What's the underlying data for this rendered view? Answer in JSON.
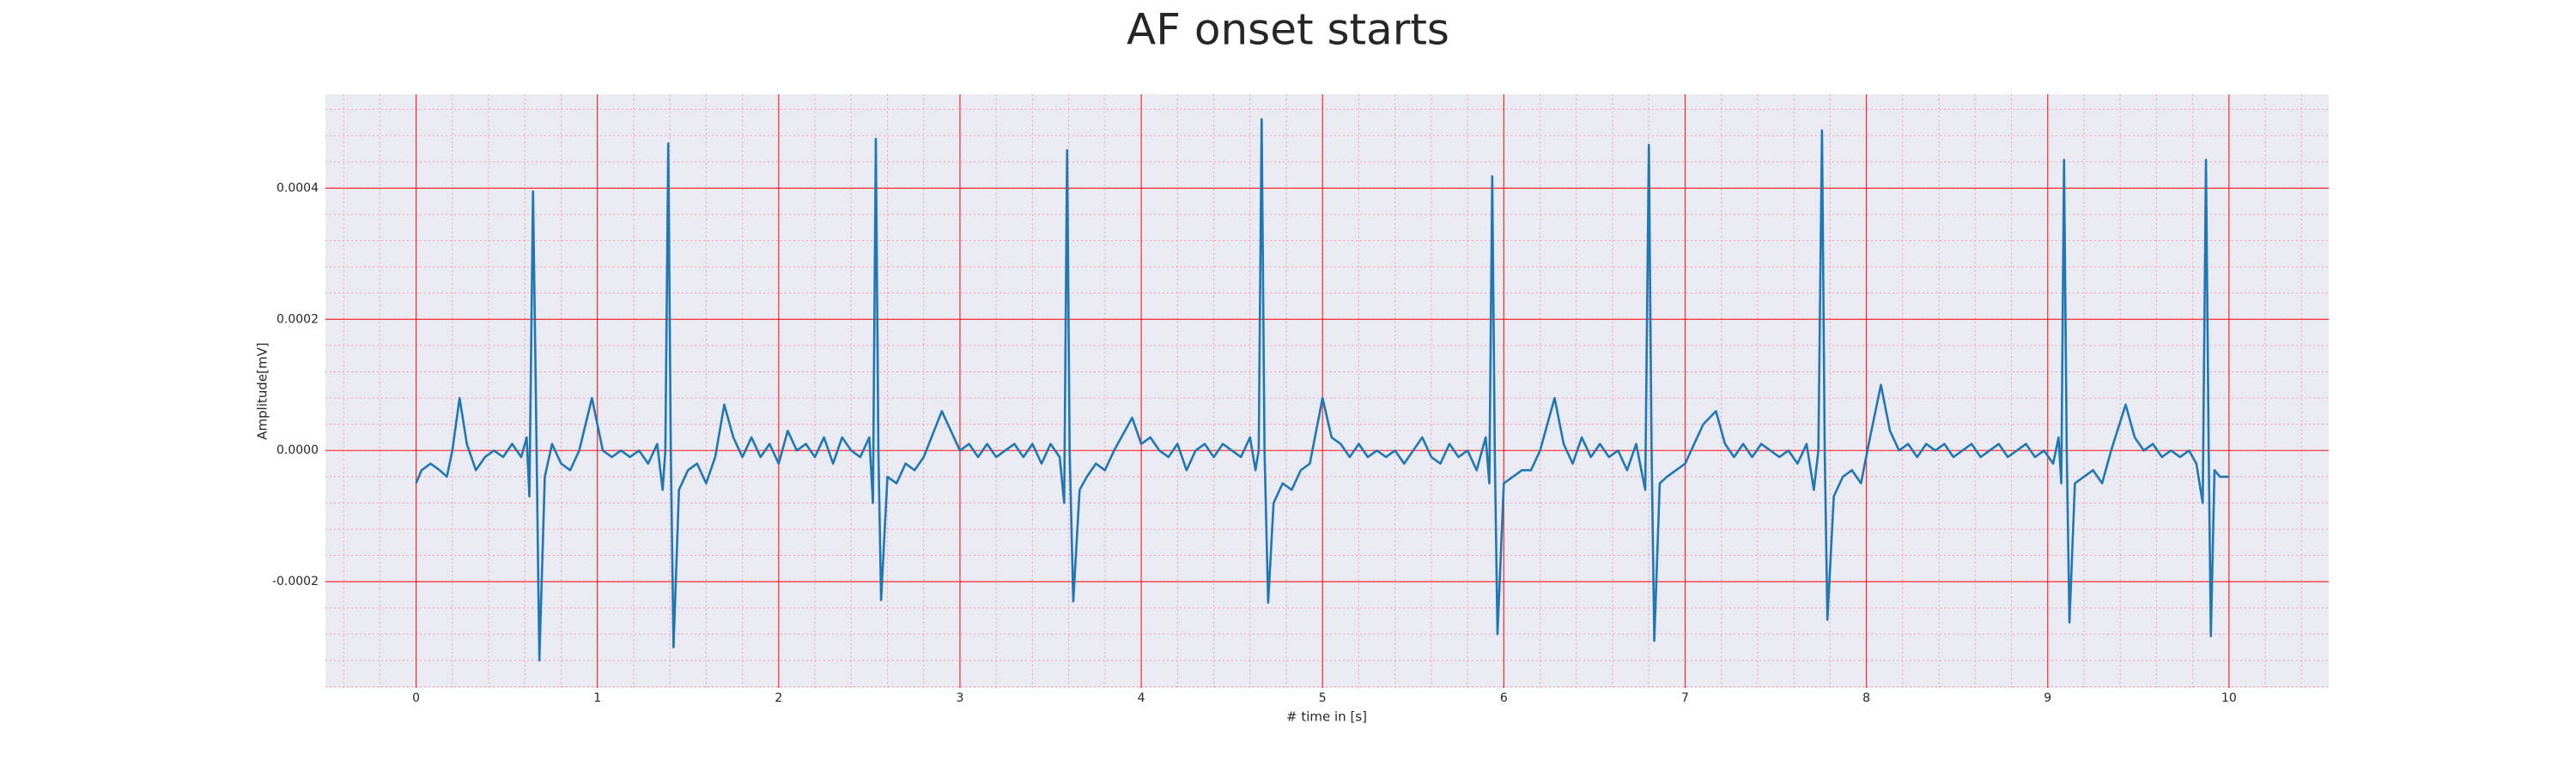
{
  "chart_data": {
    "type": "line",
    "title": "AF onset starts",
    "x_label": "# time in [s]",
    "y_label": "Amplitude[mV]",
    "color": "#1f77b4",
    "xlim": [
      -0.5,
      10.55
    ],
    "ylim": [
      -0.000362,
      0.000543
    ],
    "xticks": [
      0,
      1,
      2,
      3,
      4,
      5,
      6,
      7,
      8,
      9,
      10
    ],
    "yticks": [
      -0.0002,
      {
        "value": 0,
        "label": "0.0000"
      },
      0.0002,
      0.0004
    ],
    "grid": true,
    "grid_color": "#ff0000",
    "minor_grid": {
      "x_step": 0.2,
      "y_step": 4e-05,
      "color": "#f4a0b0"
    },
    "background": "#eaeaf2",
    "x": [
      0,
      0.03,
      0.08,
      0.13,
      0.17,
      0.2,
      0.24,
      0.28,
      0.33,
      0.38,
      0.43,
      0.48,
      0.53,
      0.58,
      0.61,
      0.625,
      0.645,
      0.66,
      0.68,
      0.71,
      0.75,
      0.8,
      0.85,
      0.9,
      0.97,
      1.03,
      1.08,
      1.13,
      1.18,
      1.23,
      1.28,
      1.33,
      1.36,
      1.375,
      1.391,
      1.405,
      1.42,
      1.45,
      1.5,
      1.55,
      1.6,
      1.65,
      1.7,
      1.75,
      1.8,
      1.85,
      1.9,
      1.95,
      2.0,
      2.05,
      2.1,
      2.15,
      2.2,
      2.25,
      2.3,
      2.35,
      2.4,
      2.45,
      2.5,
      2.52,
      2.536,
      2.55,
      2.565,
      2.6,
      2.65,
      2.7,
      2.75,
      2.8,
      2.9,
      3.0,
      3.05,
      3.1,
      3.15,
      3.2,
      3.25,
      3.3,
      3.35,
      3.4,
      3.45,
      3.5,
      3.55,
      3.575,
      3.591,
      3.605,
      3.625,
      3.66,
      3.7,
      3.75,
      3.8,
      3.85,
      3.95,
      4.0,
      4.05,
      4.1,
      4.15,
      4.2,
      4.25,
      4.3,
      4.35,
      4.4,
      4.45,
      4.5,
      4.55,
      4.6,
      4.63,
      4.648,
      4.664,
      4.68,
      4.7,
      4.73,
      4.78,
      4.83,
      4.88,
      4.93,
      5.0,
      5.05,
      5.1,
      5.15,
      5.2,
      5.25,
      5.3,
      5.35,
      5.4,
      5.45,
      5.5,
      5.55,
      5.6,
      5.65,
      5.7,
      5.75,
      5.8,
      5.85,
      5.9,
      5.92,
      5.936,
      5.95,
      5.965,
      6.0,
      6.05,
      6.1,
      6.15,
      6.2,
      6.28,
      6.33,
      6.38,
      6.43,
      6.48,
      6.53,
      6.58,
      6.63,
      6.68,
      6.73,
      6.78,
      6.8,
      6.815,
      6.83,
      6.86,
      6.9,
      6.95,
      7.0,
      7.05,
      7.1,
      7.17,
      7.22,
      7.27,
      7.32,
      7.37,
      7.42,
      7.47,
      7.52,
      7.57,
      7.62,
      7.67,
      7.71,
      7.735,
      7.755,
      7.77,
      7.785,
      7.82,
      7.87,
      7.92,
      7.97,
      8.02,
      8.08,
      8.13,
      8.18,
      8.23,
      8.28,
      8.33,
      8.38,
      8.43,
      8.48,
      8.53,
      8.58,
      8.63,
      8.68,
      8.73,
      8.78,
      8.83,
      8.88,
      8.93,
      8.98,
      9.03,
      9.06,
      9.075,
      9.09,
      9.105,
      9.12,
      9.15,
      9.2,
      9.25,
      9.3,
      9.35,
      9.43,
      9.48,
      9.53,
      9.58,
      9.63,
      9.68,
      9.73,
      9.78,
      9.82,
      9.855,
      9.873,
      9.888,
      9.9,
      9.92,
      9.95,
      10.0
    ],
    "values": [
      -5e-05,
      -3e-05,
      -2e-05,
      -3e-05,
      -4e-05,
      0.0,
      8e-05,
      1e-05,
      -3e-05,
      -1e-05,
      0.0,
      -1e-05,
      1e-05,
      -1e-05,
      2e-05,
      -7e-05,
      0.000395,
      0.0001,
      -0.00032,
      -4e-05,
      1e-05,
      -2e-05,
      -3e-05,
      0.0,
      8e-05,
      0.0,
      -1e-05,
      0.0,
      -1e-05,
      0.0,
      -2e-05,
      1e-05,
      -6e-05,
      0.0,
      0.000468,
      0.0,
      -0.0003,
      -6e-05,
      -3e-05,
      -2e-05,
      -5e-05,
      -1e-05,
      7e-05,
      2e-05,
      -1e-05,
      2e-05,
      -1e-05,
      1e-05,
      -2e-05,
      3e-05,
      0.0,
      1e-05,
      -1e-05,
      2e-05,
      -2e-05,
      2e-05,
      0.0,
      -1e-05,
      2e-05,
      -8e-05,
      0.000475,
      0.0,
      -0.000228,
      -4e-05,
      -5e-05,
      -2e-05,
      -3e-05,
      -1e-05,
      6e-05,
      0.0,
      1e-05,
      -1e-05,
      1e-05,
      -1e-05,
      0.0,
      1e-05,
      -1e-05,
      1e-05,
      -2e-05,
      1e-05,
      -1e-05,
      -8e-05,
      0.000458,
      0.0,
      -0.00023,
      -6e-05,
      -4e-05,
      -2e-05,
      -3e-05,
      0.0,
      5e-05,
      1e-05,
      2e-05,
      0.0,
      -1e-05,
      1e-05,
      -3e-05,
      0.0,
      1e-05,
      -1e-05,
      1e-05,
      0.0,
      -1e-05,
      2e-05,
      -3e-05,
      0.0,
      0.000505,
      0.0,
      -0.000232,
      -8e-05,
      -5e-05,
      -6e-05,
      -3e-05,
      -2e-05,
      8e-05,
      2e-05,
      1e-05,
      -1e-05,
      1e-05,
      -1e-05,
      0.0,
      -1e-05,
      0.0,
      -2e-05,
      0.0,
      2e-05,
      -1e-05,
      -2e-05,
      1e-05,
      -1e-05,
      0.0,
      -3e-05,
      2e-05,
      -5e-05,
      0.000418,
      0.0,
      -0.00028,
      -5e-05,
      -4e-05,
      -3e-05,
      -3e-05,
      0.0,
      8e-05,
      1e-05,
      -2e-05,
      2e-05,
      -1e-05,
      1e-05,
      -1e-05,
      0.0,
      -3e-05,
      1e-05,
      -6e-05,
      0.000466,
      0.0,
      -0.00029,
      -5e-05,
      -4e-05,
      -3e-05,
      -2e-05,
      1e-05,
      4e-05,
      6e-05,
      1e-05,
      -1e-05,
      1e-05,
      -1e-05,
      1e-05,
      0.0,
      -1e-05,
      0.0,
      -2e-05,
      1e-05,
      -6e-05,
      0.0,
      0.000488,
      0.0,
      -0.000258,
      -7e-05,
      -4e-05,
      -3e-05,
      -5e-05,
      2e-05,
      0.0001,
      3e-05,
      0.0,
      1e-05,
      -1e-05,
      1e-05,
      0.0,
      1e-05,
      -1e-05,
      0.0,
      1e-05,
      -1e-05,
      0.0,
      1e-05,
      -1e-05,
      0.0,
      1e-05,
      -1e-05,
      0.0,
      -2e-05,
      2e-05,
      -5e-05,
      0.000443,
      0.0,
      -0.000262,
      -5e-05,
      -4e-05,
      -3e-05,
      -5e-05,
      0.0,
      7e-05,
      2e-05,
      0.0,
      1e-05,
      -1e-05,
      0.0,
      -1e-05,
      0.0,
      -2e-05,
      -8e-05,
      0.000443,
      0.0,
      -0.000283,
      -3e-05,
      -4e-05,
      -4e-05
    ]
  }
}
